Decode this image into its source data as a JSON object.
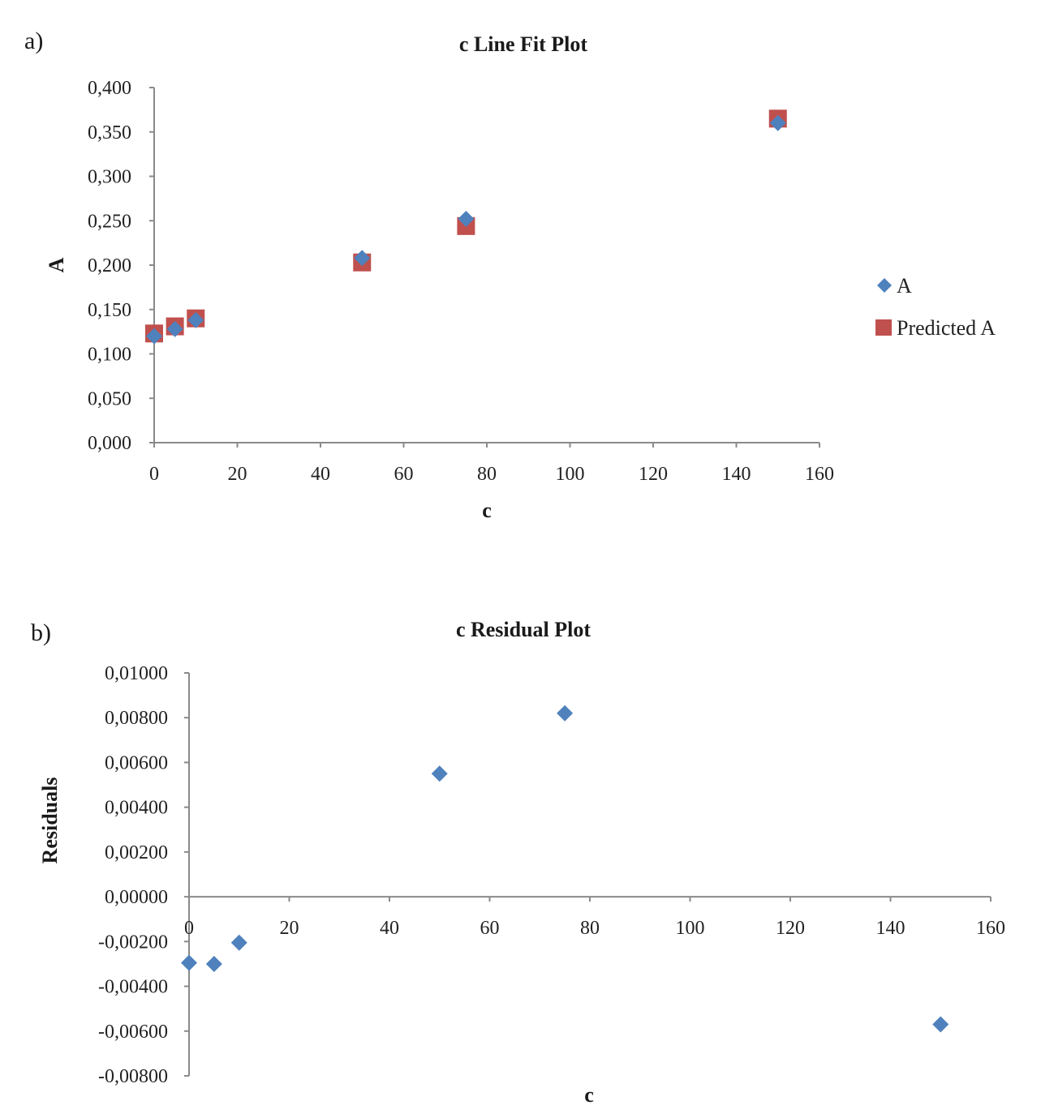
{
  "figure": {
    "panel_a_label": "a)",
    "panel_b_label": "b)"
  },
  "chart_data": [
    {
      "type": "scatter",
      "title": "c Line Fit Plot",
      "xlabel": "c",
      "ylabel": "A",
      "xlim": [
        0,
        160
      ],
      "ylim": [
        0,
        0.4
      ],
      "x_ticks": [
        "0",
        "20",
        "40",
        "60",
        "80",
        "100",
        "120",
        "140",
        "160"
      ],
      "y_ticks": [
        "0,000",
        "0,050",
        "0,100",
        "0,150",
        "0,200",
        "0,250",
        "0,300",
        "0,350",
        "0,400"
      ],
      "grid": false,
      "legend_position": "right",
      "series": [
        {
          "name": "A",
          "marker": "diamond",
          "color": "#4f81bd",
          "x": [
            0,
            5,
            10,
            50,
            75,
            150
          ],
          "y": [
            0.12,
            0.128,
            0.138,
            0.208,
            0.252,
            0.36
          ]
        },
        {
          "name": "Predicted A",
          "marker": "square",
          "color": "#c0504d",
          "x": [
            0,
            5,
            10,
            50,
            75,
            150
          ],
          "y": [
            0.123,
            0.131,
            0.14,
            0.203,
            0.244,
            0.365
          ]
        }
      ]
    },
    {
      "type": "scatter",
      "title": "c Residual Plot",
      "xlabel": "c",
      "ylabel": "Residuals",
      "xlim": [
        0,
        160
      ],
      "ylim": [
        -0.008,
        0.01
      ],
      "x_ticks": [
        "0",
        "20",
        "40",
        "60",
        "80",
        "100",
        "120",
        "140",
        "160"
      ],
      "y_ticks": [
        "-0,00800",
        "-0,00600",
        "-0,00400",
        "-0,00200",
        "0,00000",
        "0,00200",
        "0,00400",
        "0,00600",
        "0,00800",
        "0,01000"
      ],
      "grid": false,
      "series": [
        {
          "marker": "diamond",
          "color": "#4f81bd",
          "x": [
            0,
            5,
            10,
            50,
            75,
            150
          ],
          "y": [
            -0.00295,
            -0.003,
            -0.00205,
            0.0055,
            0.0082,
            -0.0057
          ]
        }
      ]
    }
  ]
}
